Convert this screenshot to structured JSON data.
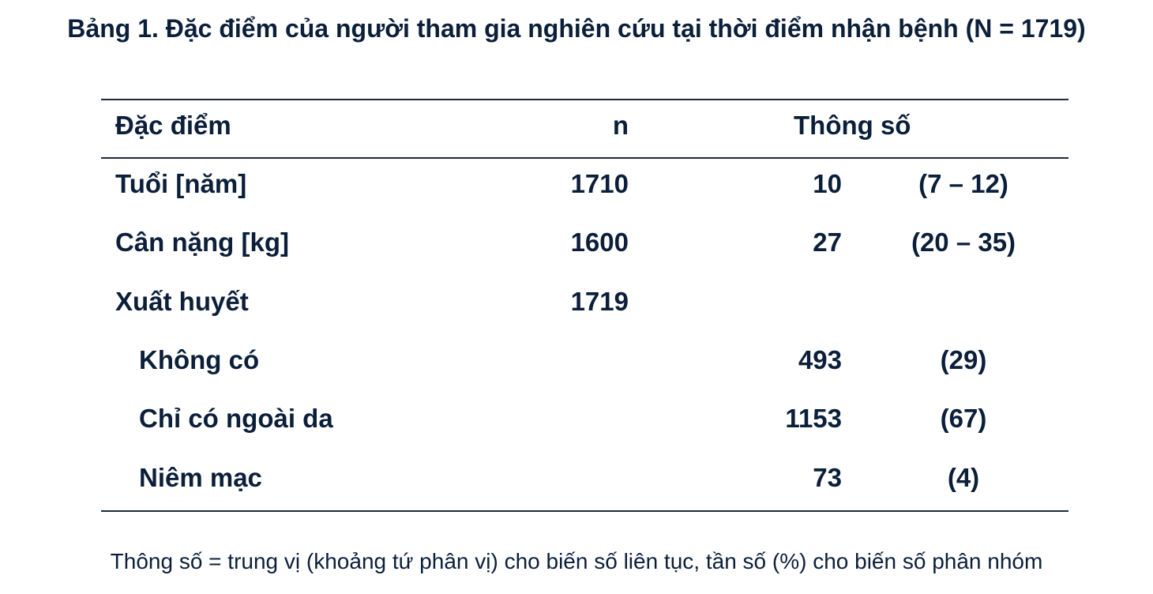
{
  "title": "Bảng 1. Đặc điểm của người tham gia nghiên cứu tại thời điểm nhận bệnh (N = 1719)",
  "table": {
    "headers": {
      "characteristic": "Đặc điểm",
      "n": "n",
      "parameter": "Thông số"
    },
    "rows": [
      {
        "label": "Tuổi [năm]",
        "n": "1710",
        "value": "10",
        "range": "(7 – 12)"
      },
      {
        "label": "Cân nặng [kg]",
        "n": "1600",
        "value": "27",
        "range": "(20 – 35)"
      },
      {
        "label": "Xuất huyết",
        "n": "1719",
        "value": "",
        "range": ""
      },
      {
        "label": "Không có",
        "n": "",
        "value": "493",
        "range": "(29)"
      },
      {
        "label": "Chỉ có ngoài da",
        "n": "",
        "value": "1153",
        "range": "(67)"
      },
      {
        "label": "Niêm mạc",
        "n": "",
        "value": "73",
        "range": "(4)"
      }
    ]
  },
  "footnote": "Thông số = trung vị (khoảng tứ phân vị) cho biến số liên tục, tần số (%) cho biến số phân nhóm",
  "colors": {
    "text": "#0b1f3a",
    "rule": "#1f2a3a",
    "background": "#ffffff"
  }
}
